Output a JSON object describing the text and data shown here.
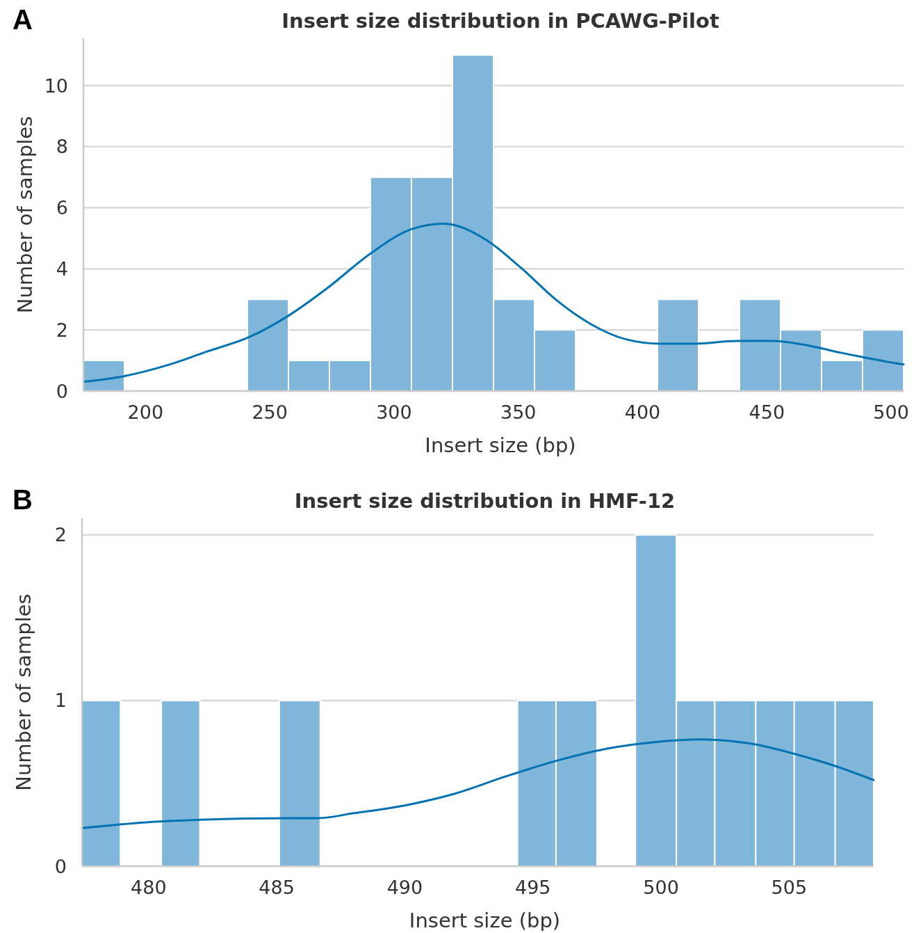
{
  "chart_data": [
    {
      "type": "histogram",
      "title": "Insert size distribution in PCAWG-Pilot",
      "xlabel": "Insert size (bp)",
      "ylabel": "Number of samples",
      "annotations": [
        "A"
      ],
      "xlim": [
        175,
        505
      ],
      "xticks": [
        200,
        250,
        300,
        350,
        400,
        450,
        500
      ],
      "ylim": [
        0,
        11.55
      ],
      "yticks": [
        0,
        2,
        4,
        6,
        8,
        10
      ],
      "grid": "y",
      "series": [
        {
          "color": "#80b6d9",
          "bins": [
            175,
            191.5,
            241,
            257.5,
            274,
            290.5,
            307,
            323.5,
            340,
            356.5,
            373,
            406,
            422.5,
            439,
            455.5,
            472,
            488.5,
            505
          ],
          "values": [
            1,
            0,
            3,
            1,
            1,
            7,
            7,
            11,
            3,
            2,
            0,
            3,
            0,
            3,
            2,
            1,
            2
          ]
        },
        {
          "type": "line",
          "color": "#0173b2",
          "x": [
            175,
            191,
            209,
            225,
            241.6,
            257,
            273,
            290.5,
            307,
            320,
            337,
            351,
            365,
            379,
            393,
            407,
            421,
            438,
            452,
            466,
            480,
            491,
            505
          ],
          "values": [
            0.3,
            0.48,
            0.85,
            1.3,
            1.76,
            2.44,
            3.36,
            4.5,
            5.3,
            5.48,
            4.95,
            4.04,
            3.0,
            2.2,
            1.7,
            1.55,
            1.55,
            1.64,
            1.64,
            1.5,
            1.25,
            1.07,
            0.87
          ]
        }
      ]
    },
    {
      "type": "histogram",
      "title": "Insert size distribution in HMF-12",
      "xlabel": "Insert size (bp)",
      "ylabel": "Number of samples",
      "annotations": [
        "B"
      ],
      "xlim": [
        477.4,
        508.3
      ],
      "xticks": [
        480,
        485,
        490,
        495,
        500,
        505
      ],
      "ylim": [
        0,
        2.1
      ],
      "yticks": [
        0,
        1,
        2
      ],
      "grid": "y",
      "series": [
        {
          "color": "#80b6d9",
          "bins": [
            477.4,
            478.9,
            480.5,
            482.0,
            485.1,
            486.7,
            494.4,
            495.9,
            497.5,
            499.0,
            500.6,
            502.1,
            503.7,
            505.2,
            506.8,
            508.3
          ],
          "values": [
            1,
            0,
            1,
            0,
            1,
            0,
            1,
            1,
            0,
            2,
            1,
            1,
            1,
            1,
            1
          ]
        },
        {
          "type": "line",
          "color": "#0173b2",
          "x": [
            477.4,
            479.9,
            482,
            485.3,
            486.6,
            488,
            490.1,
            492,
            493.9,
            496,
            497.9,
            499.8,
            501.6,
            503.5,
            505.4,
            506.7,
            508.3
          ],
          "values": [
            0.23,
            0.265,
            0.28,
            0.29,
            0.29,
            0.32,
            0.37,
            0.44,
            0.54,
            0.64,
            0.71,
            0.75,
            0.765,
            0.74,
            0.67,
            0.61,
            0.52
          ]
        }
      ]
    }
  ]
}
